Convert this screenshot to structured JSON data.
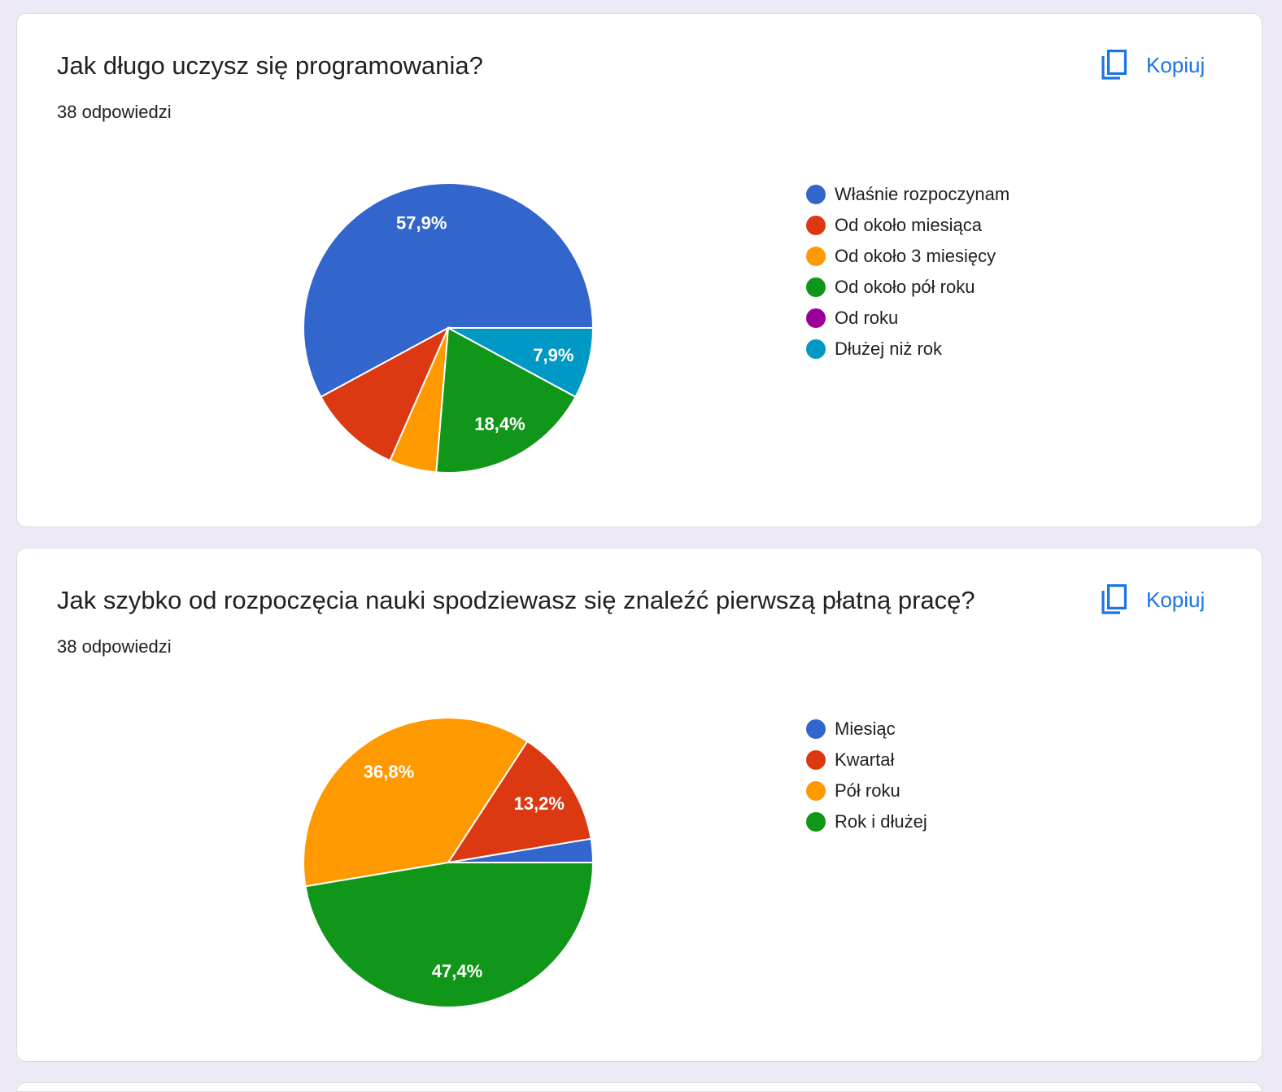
{
  "copy_label": "Kopiuj",
  "icons": {
    "copy": "copy-icon"
  },
  "colors": {
    "blue": "#3366cc",
    "red": "#dc3912",
    "orange": "#ff9900",
    "green": "#109618",
    "purple": "#990099",
    "teal": "#0099c6",
    "accent": "#1a73e8"
  },
  "cards": [
    {
      "title": "Jak długo uczysz się programowania?",
      "responses": "38 odpowiedzi"
    },
    {
      "title": "Jak szybko od rozpoczęcia nauki spodziewasz się znaleźć pierwszą płatną pracę?",
      "responses": "38 odpowiedzi"
    }
  ],
  "chart_data": [
    {
      "type": "pie",
      "total_responses": 38,
      "slices": [
        {
          "label": "Właśnie rozpoczynam",
          "count": 22,
          "value": 57.9,
          "value_label": "57,9%",
          "color": "#3366cc"
        },
        {
          "label": "Od około miesiąca",
          "count": 4,
          "value": 10.5,
          "value_label": "",
          "color": "#dc3912"
        },
        {
          "label": "Od około 3 miesięcy",
          "count": 2,
          "value": 5.3,
          "value_label": "",
          "color": "#ff9900"
        },
        {
          "label": "Od około pół roku",
          "count": 7,
          "value": 18.4,
          "value_label": "18,4%",
          "color": "#109618"
        },
        {
          "label": "Od roku",
          "count": 0,
          "value": 0,
          "value_label": "",
          "color": "#990099"
        },
        {
          "label": "Dłużej niż rok",
          "count": 3,
          "value": 7.9,
          "value_label": "7,9%",
          "color": "#0099c6"
        }
      ],
      "legend_position": "right"
    },
    {
      "type": "pie",
      "total_responses": 38,
      "slices": [
        {
          "label": "Miesiąc",
          "count": 1,
          "value": 2.6,
          "value_label": "",
          "color": "#3366cc"
        },
        {
          "label": "Kwartał",
          "count": 5,
          "value": 13.2,
          "value_label": "13,2%",
          "color": "#dc3912"
        },
        {
          "label": "Pół roku",
          "count": 14,
          "value": 36.8,
          "value_label": "36,8%",
          "color": "#ff9900"
        },
        {
          "label": "Rok i dłużej",
          "count": 18,
          "value": 47.4,
          "value_label": "47,4%",
          "color": "#109618"
        }
      ],
      "legend_position": "right"
    }
  ]
}
